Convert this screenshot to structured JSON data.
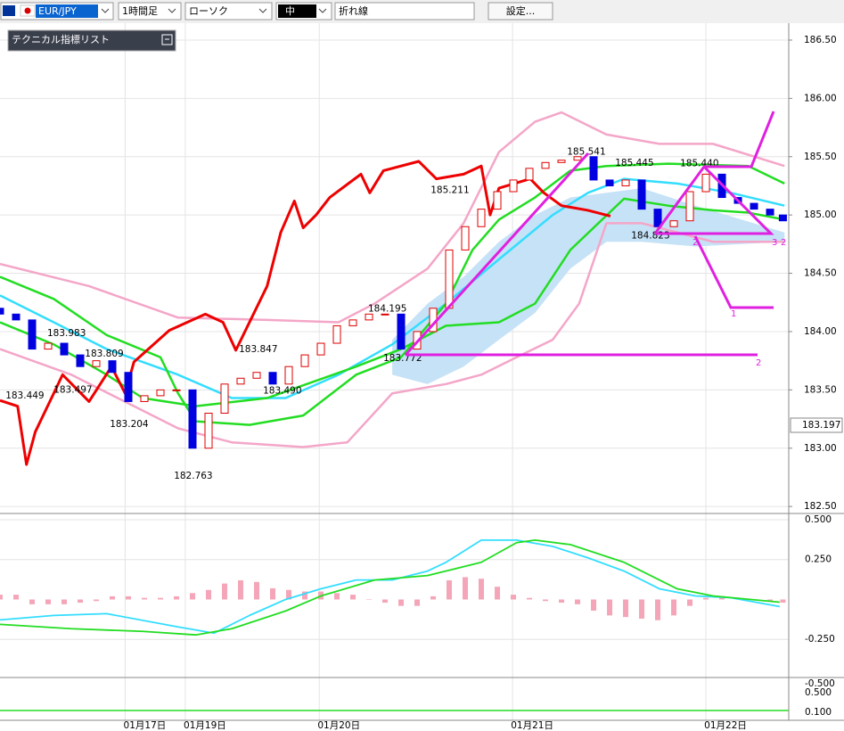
{
  "toolbar": {
    "symbol": "EUR/JPY",
    "timeframe": "1時間足",
    "chart_style": "ローソク",
    "size": "中",
    "line_type": "折れ線",
    "settings": "設定..."
  },
  "indicator_panel": {
    "title": "テクニカル指標リスト"
  },
  "chart_data": [
    {
      "type": "candlestick",
      "xlim": [
        0,
        98.33
      ],
      "ylim": [
        182.44,
        186.645
      ],
      "yticks": [
        {
          "value": 186.5,
          "label": "186.50"
        },
        {
          "value": 186,
          "label": "186.00"
        },
        {
          "value": 185.5,
          "label": "185.50"
        },
        {
          "value": 185,
          "label": "185.00"
        },
        {
          "value": 184.5,
          "label": "184.50"
        },
        {
          "value": 184,
          "label": "184.00"
        },
        {
          "value": 183.5,
          "label": "183.50"
        },
        {
          "value": 183,
          "label": "183.00"
        },
        {
          "value": 182.5,
          "label": "182.50"
        }
      ],
      "xticks": [
        {
          "value": 15.6,
          "label": "01月17日"
        },
        {
          "value": 23.1,
          "label": "01月19日"
        },
        {
          "value": 39.8,
          "label": "01月20日"
        },
        {
          "value": 63.9,
          "label": "01月21日"
        },
        {
          "value": 88,
          "label": "01月22日"
        }
      ],
      "grid": true,
      "current_price": 183.197,
      "up_color": "#e00000",
      "down_color": "#0000e0",
      "x": [
        0,
        2,
        4,
        6,
        8,
        10,
        12,
        14,
        16,
        18,
        20,
        22,
        24,
        26,
        28,
        30,
        32,
        34,
        36,
        38,
        40,
        42,
        44,
        46,
        48,
        50,
        52,
        54,
        56,
        58,
        60,
        62,
        64,
        66,
        68,
        70,
        72,
        74,
        76,
        78,
        80,
        82,
        84,
        86,
        88,
        90,
        92,
        94,
        96,
        97.6
      ],
      "open": [
        184.2,
        184.15,
        184.1,
        183.85,
        183.9,
        183.8,
        183.7,
        183.75,
        183.65,
        183.4,
        183.45,
        183.5,
        183.5,
        183.0,
        183.3,
        183.55,
        183.6,
        183.65,
        183.55,
        183.7,
        183.8,
        183.9,
        184.05,
        184.1,
        184.15,
        184.15,
        183.85,
        184.0,
        184.2,
        184.7,
        184.9,
        185.05,
        185.2,
        185.3,
        185.4,
        185.45,
        185.47,
        185.5,
        185.3,
        185.25,
        185.3,
        185.05,
        184.9,
        184.95,
        185.2,
        185.35,
        185.15,
        185.1,
        185.05,
        185.0
      ],
      "close": [
        184.15,
        184.1,
        183.85,
        183.9,
        183.8,
        183.7,
        183.75,
        183.65,
        183.4,
        183.45,
        183.5,
        183.5,
        183.0,
        183.3,
        183.55,
        183.6,
        183.65,
        183.55,
        183.7,
        183.8,
        183.9,
        184.05,
        184.1,
        184.15,
        184.15,
        183.85,
        184.0,
        184.2,
        184.7,
        184.9,
        185.05,
        185.2,
        185.3,
        185.4,
        185.45,
        185.47,
        185.5,
        185.3,
        185.25,
        185.3,
        185.05,
        184.9,
        184.95,
        185.2,
        185.35,
        185.15,
        185.1,
        185.05,
        185.0,
        184.95
      ],
      "cloud": {
        "color": "#c6e2f7",
        "x": [
          48.9,
          53.3,
          57.8,
          62.2,
          66.7,
          71.1,
          75.6,
          80,
          86.7,
          97.8
        ],
        "upper": [
          183.93,
          184.24,
          184.47,
          184.77,
          185.0,
          185.15,
          185.19,
          185.23,
          185.08,
          184.85
        ],
        "lower": [
          183.63,
          183.55,
          183.7,
          183.93,
          184.16,
          184.54,
          184.77,
          184.77,
          184.73,
          184.77
        ]
      },
      "series": [
        {
          "color": "#80ffff",
          "width": 1,
          "x": [
            0,
            11.1,
            22.2,
            33.3,
            42.2,
            46.7,
            53.3,
            57.8,
            62.2,
            66.7,
            70,
            75.6,
            82.2,
            88.9,
            97.8
          ],
          "values": [
            184.58,
            184.39,
            184.12,
            184.1,
            184.08,
            184.24,
            184.54,
            184.93,
            185.54,
            185.8,
            185.88,
            185.69,
            185.61,
            185.61,
            185.42
          ]
        },
        {
          "color": "#f4a6c8",
          "width": 2.5,
          "x": [
            0,
            11.1,
            22.2,
            33.3,
            42.2,
            46.7,
            53.3,
            57.8,
            62.2,
            66.7,
            70,
            75.6,
            82.2,
            88.9,
            97.8
          ],
          "values": [
            184.58,
            184.39,
            184.12,
            184.1,
            184.08,
            184.24,
            184.54,
            184.93,
            185.54,
            185.8,
            185.88,
            185.69,
            185.61,
            185.61,
            185.42
          ]
        },
        {
          "color": "#f4a6c8",
          "width": 2.5,
          "x": [
            0,
            8.9,
            16.7,
            22.2,
            28.9,
            37.8,
            43.3,
            48.9,
            55.6,
            60,
            64.4,
            68.9,
            72.2,
            75.6,
            80,
            88.9,
            97.8
          ],
          "values": [
            183.85,
            183.63,
            183.36,
            183.17,
            183.05,
            183.01,
            183.05,
            183.47,
            183.55,
            183.63,
            183.78,
            183.93,
            184.24,
            184.93,
            184.93,
            184.77,
            184.77
          ]
        },
        {
          "color": "#33ddff",
          "width": 2.5,
          "x": [
            0,
            6.7,
            13.3,
            22.2,
            28.9,
            35.6,
            42.2,
            48.9,
            55.6,
            62.2,
            68.9,
            73.3,
            77.8,
            84.4,
            91.1,
            97.8
          ],
          "values": [
            184.31,
            184.08,
            183.85,
            183.63,
            183.43,
            183.43,
            183.63,
            183.89,
            184.24,
            184.62,
            185.0,
            185.19,
            185.31,
            185.27,
            185.19,
            185.08
          ]
        },
        {
          "color": "#22dd22",
          "width": 2.5,
          "x": [
            0,
            6.7,
            13.3,
            20,
            22.2,
            24.4,
            31.1,
            37.8,
            44.4,
            50,
            55.6,
            58.9,
            62.2,
            66.7,
            71.1,
            75.6,
            83.3,
            93.3,
            97.8
          ],
          "values": [
            184.47,
            184.28,
            183.97,
            183.78,
            183.47,
            183.23,
            183.2,
            183.28,
            183.63,
            183.78,
            184.24,
            184.7,
            184.96,
            185.15,
            185.38,
            185.42,
            185.44,
            185.42,
            185.27
          ]
        },
        {
          "color": "#22dd22",
          "width": 2.5,
          "x": [
            0,
            6.7,
            13.3,
            17.8,
            24.4,
            33.3,
            44.4,
            50,
            55.6,
            62.2,
            66.7,
            71.1,
            77.8,
            83.3,
            88.9,
            93.3,
            97.8
          ],
          "values": [
            184.08,
            183.89,
            183.63,
            183.43,
            183.36,
            183.43,
            183.7,
            183.85,
            184.05,
            184.08,
            184.24,
            184.7,
            185.14,
            185.08,
            185.04,
            185.02,
            184.96
          ]
        },
        {
          "color": "#ee0000",
          "width": 3,
          "x": [
            0,
            2.2,
            3.3,
            4.4,
            6.7,
            7.8,
            11.1,
            13.9,
            15.6,
            16.7,
            21.1,
            25.6,
            27.8,
            29.4,
            33.3,
            35,
            36.7,
            37.8,
            39.4,
            41.1,
            45,
            46.1,
            47.8,
            52.2,
            54.4,
            57.8,
            60,
            61.1,
            62.2,
            66.1,
            67.8,
            70,
            73.3,
            76.1
          ],
          "values": [
            183.41,
            183.36,
            182.86,
            183.14,
            183.47,
            183.63,
            183.4,
            183.7,
            183.47,
            183.74,
            184.01,
            184.15,
            184.08,
            183.84,
            184.39,
            184.85,
            185.12,
            184.89,
            185.0,
            185.15,
            185.35,
            185.19,
            185.38,
            185.46,
            185.31,
            185.35,
            185.42,
            185.0,
            185.23,
            185.31,
            185.19,
            185.08,
            185.04,
            184.99
          ]
        }
      ],
      "annotations": [
        {
          "x": 3.1,
          "value": 183.449,
          "label": "183.449"
        },
        {
          "x": 8.3,
          "value": 183.983,
          "label": "183.983"
        },
        {
          "x": 9.1,
          "value": 183.497,
          "label": "183.497"
        },
        {
          "x": 13,
          "value": 183.809,
          "label": "183.809"
        },
        {
          "x": 16.1,
          "value": 183.204,
          "label": "183.204"
        },
        {
          "x": 24.1,
          "value": 182.763,
          "label": "182.763"
        },
        {
          "x": 32.2,
          "value": 183.847,
          "label": "183.847"
        },
        {
          "x": 35.2,
          "value": 183.49,
          "label": "183.490"
        },
        {
          "x": 48.3,
          "value": 184.195,
          "label": "184.195"
        },
        {
          "x": 50.2,
          "value": 183.772,
          "label": "183.772"
        },
        {
          "x": 56.1,
          "value": 185.211,
          "label": "185.211"
        },
        {
          "x": 73.1,
          "value": 185.541,
          "label": "185.541"
        },
        {
          "x": 79.1,
          "value": 185.445,
          "label": "185.445"
        },
        {
          "x": 81.1,
          "value": 184.823,
          "label": "184.823"
        },
        {
          "x": 87.2,
          "value": 185.44,
          "label": "185.440"
        }
      ]
    },
    {
      "type": "macd",
      "xlim": [
        0,
        98.33
      ],
      "ylim": [
        -0.489,
        0.539
      ],
      "yticks": [
        {
          "value": 0.5,
          "label": "0.500"
        },
        {
          "value": 0.25,
          "label": "0.250"
        },
        {
          "value": -0.25,
          "label": "-0.250"
        }
      ],
      "hist_color": "#f4a6b8",
      "x": [
        0,
        2,
        4,
        6,
        8,
        10,
        12,
        14,
        16,
        18,
        20,
        22,
        24,
        26,
        28,
        30,
        32,
        34,
        36,
        38,
        40,
        42,
        44,
        46,
        48,
        50,
        52,
        54,
        56,
        58,
        60,
        62,
        64,
        66,
        68,
        70,
        72,
        74,
        76,
        78,
        80,
        82,
        84,
        86,
        88,
        90,
        92,
        94,
        96,
        97.6
      ],
      "values": [
        0.03,
        0.03,
        -0.03,
        -0.03,
        -0.03,
        -0.02,
        -0.01,
        0.02,
        0.02,
        0.01,
        0.01,
        0.02,
        0.04,
        0.06,
        0.1,
        0.12,
        0.11,
        0.07,
        0.06,
        0.05,
        0.05,
        0.04,
        0.03,
        0.0,
        -0.02,
        -0.04,
        -0.04,
        0.02,
        0.12,
        0.14,
        0.13,
        0.08,
        0.03,
        0.01,
        -0.01,
        -0.02,
        -0.03,
        -0.07,
        -0.1,
        -0.11,
        -0.12,
        -0.13,
        -0.1,
        -0.04,
        0.01,
        0.02,
        0.01,
        0.0,
        -0.01,
        -0.02
      ],
      "series": [
        {
          "color": "#33ddff",
          "x": [
            0,
            6.7,
            13.3,
            22.2,
            26.7,
            31.1,
            35.6,
            40,
            44.4,
            48.9,
            53.3,
            55.6,
            60,
            64.4,
            68.9,
            73.3,
            77.8,
            82.2,
            86.7,
            91.1,
            97.2
          ],
          "values": [
            -0.128,
            -0.1,
            -0.089,
            -0.172,
            -0.211,
            -0.1,
            0,
            0.067,
            0.122,
            0.122,
            0.178,
            0.233,
            0.372,
            0.372,
            0.333,
            0.261,
            0.178,
            0.067,
            0.022,
            0.011,
            -0.044
          ]
        },
        {
          "color": "#22dd22",
          "x": [
            0,
            8.9,
            17.8,
            24.4,
            28.9,
            35.6,
            40,
            46.7,
            53.3,
            60,
            64.4,
            66.7,
            71.1,
            77.8,
            84.4,
            88.9,
            97.2
          ],
          "values": [
            -0.156,
            -0.183,
            -0.2,
            -0.222,
            -0.183,
            -0.072,
            0.022,
            0.122,
            0.15,
            0.233,
            0.356,
            0.372,
            0.344,
            0.233,
            0.067,
            0.022,
            -0.017
          ]
        }
      ]
    }
  ],
  "lower_panel": {
    "labels": [
      "-0.500",
      "0.500",
      "0.100"
    ]
  },
  "drawing_labels": [
    "1",
    "2",
    "2",
    "3",
    "2"
  ]
}
